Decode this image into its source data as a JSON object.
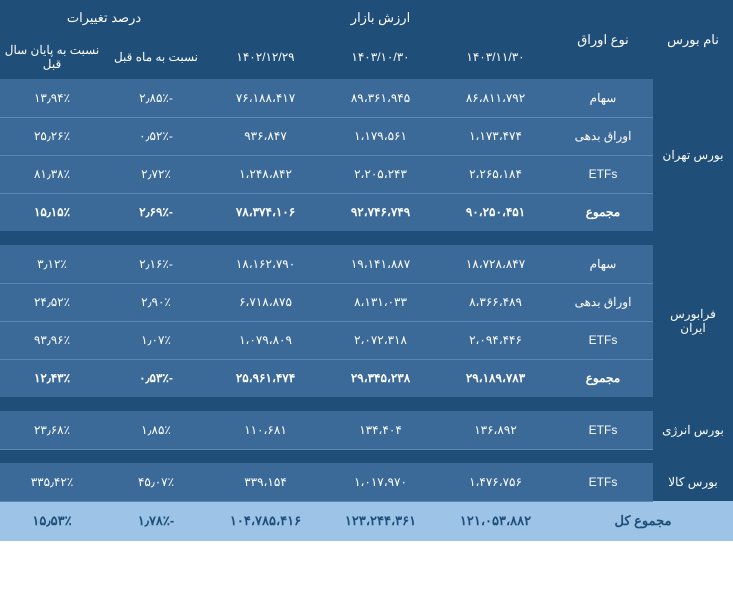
{
  "headers": {
    "exchange": "نام بورس",
    "type": "نوع اوراق",
    "market_value": "ارزش بازار",
    "pct_change": "درصد تغییرات",
    "date1": "۱۴۰۳/۱۱/۳۰",
    "date2": "۱۴۰۳/۱۰/۳۰",
    "date3": "۱۴۰۲/۱۲/۲۹",
    "vs_month": "نسبت به ماه قبل",
    "vs_year": "نسبت به پایان سال قبل"
  },
  "sections": [
    {
      "exchange": "بورس تهران",
      "rows": [
        {
          "type": "سهام",
          "v1": "۸۶،۸۱۱،۷۹۲",
          "v2": "۸۹،۳۶۱،۹۴۵",
          "v3": "۷۶،۱۸۸،۴۱۷",
          "p1": "-۲٫۸۵٪",
          "p2": "۱۳٫۹۴٪"
        },
        {
          "type": "اوراق بدهی",
          "v1": "۱،۱۷۳،۴۷۴",
          "v2": "۱،۱۷۹،۵۶۱",
          "v3": "۹۳۶،۸۴۷",
          "p1": "-۰٫۵۲٪",
          "p2": "۲۵٫۲۶٪"
        },
        {
          "type": "ETFs",
          "v1": "۲،۲۶۵،۱۸۴",
          "v2": "۲،۲۰۵،۲۴۳",
          "v3": "۱،۲۴۸،۸۴۲",
          "p1": "۲٫۷۲٪",
          "p2": "۸۱٫۳۸٪"
        }
      ],
      "total": {
        "type": "مجموع",
        "v1": "۹۰،۲۵۰،۴۵۱",
        "v2": "۹۲،۷۴۶،۷۴۹",
        "v3": "۷۸،۳۷۴،۱۰۶",
        "p1": "-۲٫۶۹٪",
        "p2": "۱۵٫۱۵٪"
      }
    },
    {
      "exchange": "فرابورس ایران",
      "rows": [
        {
          "type": "سهام",
          "v1": "۱۸،۷۲۸،۸۴۷",
          "v2": "۱۹،۱۴۱،۸۸۷",
          "v3": "۱۸،۱۶۲،۷۹۰",
          "p1": "-۲٫۱۶٪",
          "p2": "۳٫۱۲٪"
        },
        {
          "type": "اوراق بدهی",
          "v1": "۸،۳۶۶،۴۸۹",
          "v2": "۸،۱۳۱،۰۳۳",
          "v3": "۶،۷۱۸،۸۷۵",
          "p1": "۲٫۹۰٪",
          "p2": "۲۴٫۵۲٪"
        },
        {
          "type": "ETFs",
          "v1": "۲،۰۹۴،۴۴۶",
          "v2": "۲،۰۷۲،۳۱۸",
          "v3": "۱،۰۷۹،۸۰۹",
          "p1": "۱٫۰۷٪",
          "p2": "۹۳٫۹۶٪"
        }
      ],
      "total": {
        "type": "مجموع",
        "v1": "۲۹،۱۸۹،۷۸۳",
        "v2": "۲۹،۳۴۵،۲۳۸",
        "v3": "۲۵،۹۶۱،۴۷۴",
        "p1": "-۰٫۵۳٪",
        "p2": "۱۲٫۴۳٪"
      }
    },
    {
      "exchange": "بورس انرژی",
      "rows": [
        {
          "type": "ETFs",
          "v1": "۱۳۶،۸۹۲",
          "v2": "۱۳۴،۴۰۴",
          "v3": "۱۱۰،۶۸۱",
          "p1": "۱٫۸۵٪",
          "p2": "۲۳٫۶۸٪"
        }
      ]
    },
    {
      "exchange": "بورس کالا",
      "rows": [
        {
          "type": "ETFs",
          "v1": "۱،۴۷۶،۷۵۶",
          "v2": "۱،۰۱۷،۹۷۰",
          "v3": "۳۳۹،۱۵۴",
          "p1": "۴۵٫۰۷٪",
          "p2": "۳۳۵٫۴۲٪"
        }
      ]
    }
  ],
  "grand_total": {
    "type": "مجموع کل",
    "v1": "۱۲۱،۰۵۳،۸۸۲",
    "v2": "۱۲۳،۲۴۴،۳۶۱",
    "v3": "۱۰۴،۷۸۵،۴۱۶",
    "p1": "-۱٫۷۸٪",
    "p2": "۱۵٫۵۳٪"
  },
  "colors": {
    "header_bg": "#1f4e79",
    "data_bg": "#3b6a99",
    "grand_bg": "#9dc3e6",
    "text_light": "#ffffff",
    "text_dark": "#1f4e79"
  }
}
